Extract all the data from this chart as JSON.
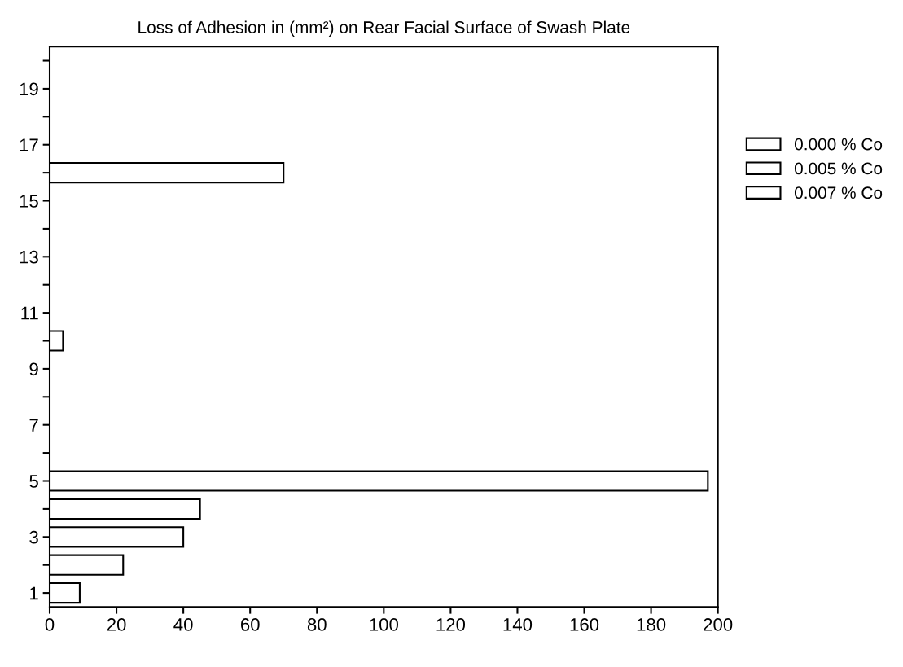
{
  "chart_data": {
    "type": "bar",
    "orientation": "horizontal",
    "title": "Loss of Adhesion in (mm²) on Rear Facial Surface of Swash Plate",
    "categories": [
      null,
      "19",
      null,
      "17",
      null,
      "15",
      null,
      "13",
      null,
      "11",
      null,
      "9",
      null,
      "7",
      null,
      "5",
      null,
      "3",
      null,
      "1"
    ],
    "series": [
      {
        "name": "0.000 % Co",
        "color": "#ffffff",
        "values": [
          null,
          null,
          null,
          null,
          70,
          null,
          null,
          null,
          null,
          null,
          4,
          null,
          null,
          null,
          null,
          197,
          45,
          40,
          22,
          9
        ]
      },
      {
        "name": "0.005 % Co",
        "color": "#ffffff",
        "values": [
          null,
          null,
          null,
          null,
          null,
          null,
          null,
          null,
          null,
          null,
          null,
          null,
          null,
          null,
          null,
          null,
          null,
          null,
          null,
          null
        ]
      },
      {
        "name": "0.007 % Co",
        "color": "#ffffff",
        "values": [
          null,
          null,
          null,
          null,
          null,
          null,
          null,
          null,
          null,
          null,
          null,
          null,
          null,
          null,
          null,
          null,
          null,
          null,
          null,
          null
        ]
      }
    ],
    "xlim": [
      0,
      200
    ],
    "xticks": [
      0,
      20,
      40,
      60,
      80,
      100,
      120,
      140,
      160,
      180,
      200
    ],
    "grid": false,
    "legend": "right"
  }
}
